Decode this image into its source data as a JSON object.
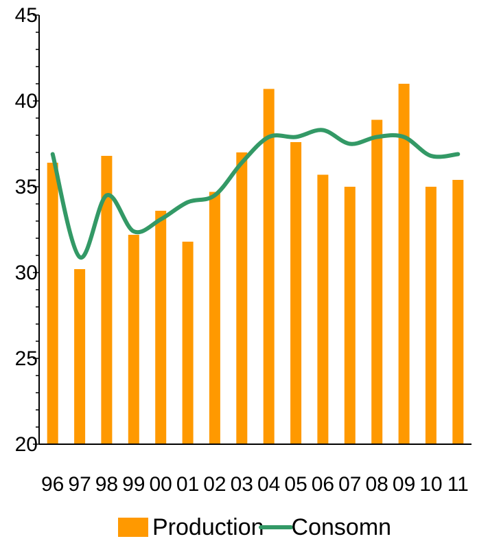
{
  "chart_data": {
    "type": "bar",
    "categories": [
      "96",
      "97",
      "98",
      "99",
      "00",
      "01",
      "02",
      "03",
      "04",
      "05",
      "06",
      "07",
      "08",
      "09",
      "10",
      "11"
    ],
    "series": [
      {
        "name": "Production",
        "type": "bar",
        "color": "#ff9900",
        "values": [
          36.4,
          30.2,
          36.8,
          32.2,
          33.6,
          31.8,
          34.7,
          37.0,
          40.7,
          37.6,
          35.7,
          35.0,
          38.9,
          41.0,
          35.0,
          35.4
        ]
      },
      {
        "name": "Consomn",
        "type": "line",
        "color": "#339966",
        "smooth": true,
        "values": [
          36.9,
          30.9,
          34.5,
          32.4,
          33.1,
          34.1,
          34.5,
          36.4,
          37.9,
          37.9,
          38.3,
          37.5,
          37.9,
          37.9,
          36.8,
          36.9
        ]
      }
    ],
    "title": "",
    "xlabel": "",
    "ylabel": "",
    "ylim": [
      20,
      45
    ],
    "yticks": [
      "20",
      "25",
      "30",
      "35",
      "40",
      "45"
    ],
    "grid": false,
    "legend_position": "bottom"
  }
}
